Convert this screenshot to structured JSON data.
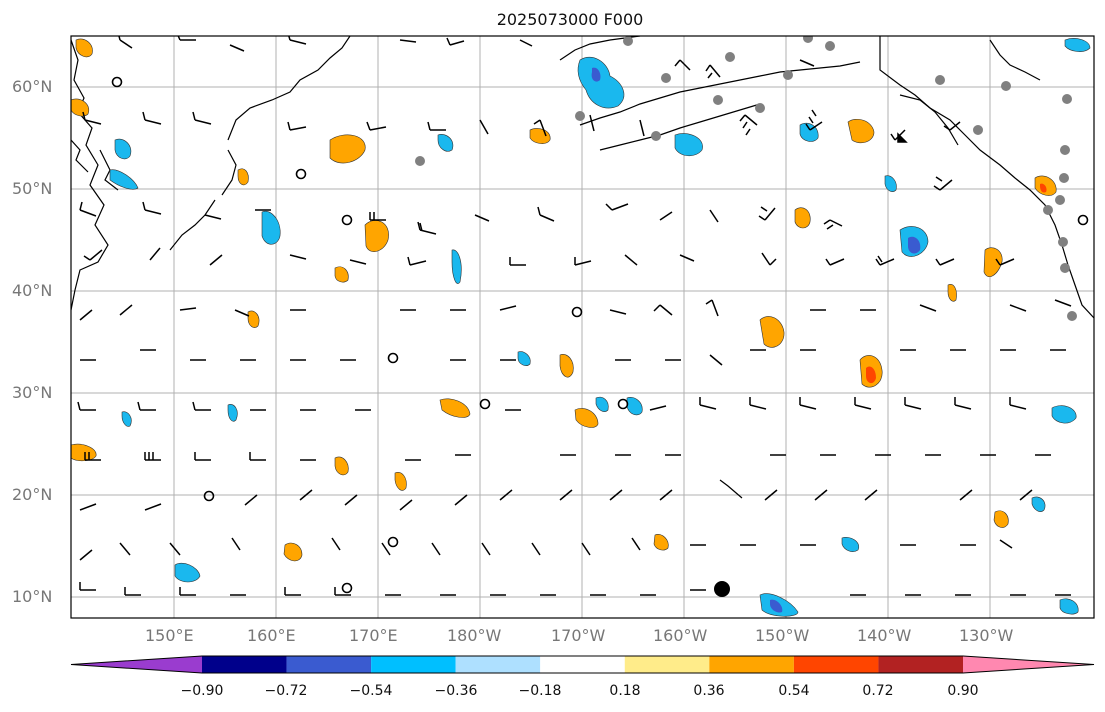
{
  "title": "2025073000 F000",
  "lat_labels": [
    "60°N",
    "50°N",
    "40°N",
    "30°N",
    "20°N",
    "10°N"
  ],
  "lon_labels": [
    "150°E",
    "160°E",
    "170°E",
    "180°W",
    "170°W",
    "160°W",
    "150°W",
    "140°W",
    "130°W"
  ],
  "colorbar": {
    "tick_labels": [
      "−0.90",
      "−0.72",
      "−0.54",
      "−0.36",
      "−0.18",
      "0.18",
      "0.36",
      "0.54",
      "0.72",
      "0.90"
    ],
    "colors": [
      "#9a3ccf",
      "#00008b",
      "#3a5bd0",
      "#00bfff",
      "#aee0ff",
      "#ffffff",
      "#ffec8a",
      "#ffa500",
      "#ff4500",
      "#b22222",
      "#ff88b0"
    ]
  },
  "map_colors": {
    "positive": "#ffa500",
    "negative": "#1ab8ee",
    "strong_negative": "#3a5bd0",
    "strong_positive": "#ff4500",
    "station_dot": "#808080"
  }
}
